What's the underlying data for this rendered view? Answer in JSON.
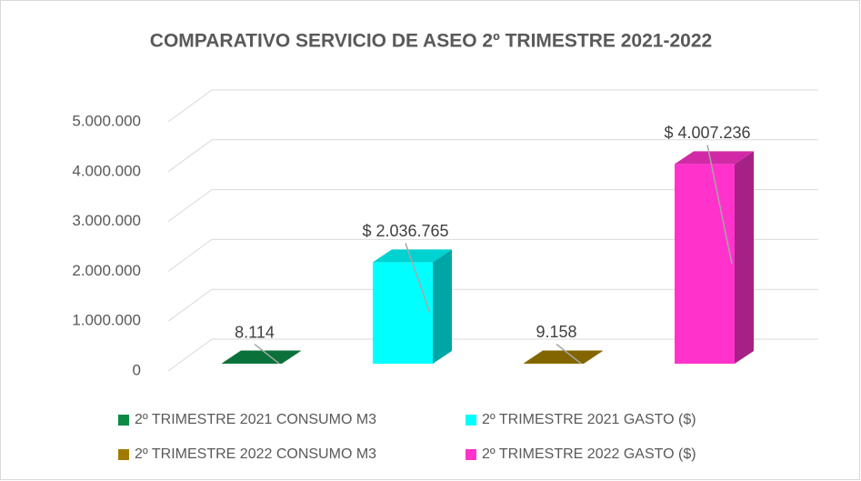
{
  "chart_data": {
    "type": "bar",
    "title": "COMPARATIVO SERVICIO DE ASEO  2º TRIMESTRE 2021-2022",
    "series": [
      {
        "name": "2º TRIMESTRE 2021 CONSUMO M3",
        "color": "#0b8a45",
        "values": [
          8114
        ],
        "value_labels": [
          "8.114"
        ]
      },
      {
        "name": "2º TRIMESTRE 2021 GASTO ($)",
        "color": "#00ffff",
        "values": [
          2036765
        ],
        "value_labels": [
          "$ 2.036.765"
        ]
      },
      {
        "name": "2º TRIMESTRE 2022 CONSUMO M3",
        "color": "#a07b00",
        "values": [
          9158
        ],
        "value_labels": [
          "9.158"
        ]
      },
      {
        "name": "2º TRIMESTRE 2022 GASTO ($)",
        "color": "#ff33cc",
        "values": [
          4007236
        ],
        "value_labels": [
          "$ 4.007.236"
        ]
      }
    ],
    "ylim": [
      0,
      5000000
    ],
    "yticks": [
      0,
      {
        "value": 1000000,
        "label": "1.000.000"
      },
      {
        "value": 2000000,
        "label": "2.000.000"
      },
      {
        "value": 3000000,
        "label": "3.000.000"
      },
      {
        "value": 4000000,
        "label": "4.000.000"
      },
      {
        "value": 5000000,
        "label": "5.000.000"
      }
    ],
    "grid": true,
    "legend": "bottom"
  }
}
